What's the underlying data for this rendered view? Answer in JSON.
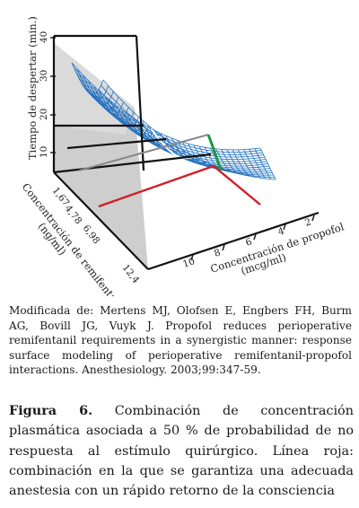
{
  "figure": {
    "z_axis": {
      "label": "Tiempo de despertar (min.)",
      "ticks": [
        "10",
        "20",
        "30",
        "40"
      ]
    },
    "remifentanil_axis": {
      "label": "Concentración de remifentanil",
      "unit": "(ng/ml)",
      "ticks": [
        "1,67",
        "4,78",
        "6,98",
        "12,4"
      ]
    },
    "propofol_axis": {
      "label": "Concentración de propofol",
      "unit": "(mcg/ml)",
      "ticks": [
        "2",
        "4",
        "6",
        "8",
        "10"
      ]
    },
    "colors": {
      "surface_mesh": "#1f6fc0",
      "optimal_line": "#d0202a",
      "response_curve": "#1a9a3a",
      "iso_curve": "#ffffff",
      "shadow_plane": "#c8c8c8",
      "axes": "#111111"
    }
  },
  "credit": {
    "text": "Modificada de: Mertens MJ, Olofsen E, Engbers FH, Burm AG, Bovill JG, Vuyk J. Propofol reduces perioperative remifentanil requirements in a synergistic manner: response surface modeling of perioperative remifentanil-propofol interactions. Anesthesiology. 2003;99:347-59."
  },
  "caption": {
    "label": "Figura 6.",
    "text": " Combinación de concentración plasmática asociada a 50 % de probabilidad de no respuesta al estímulo quirúrgico. Línea roja: combinación en la que se garantiza una adecuada anestesia con un rápido retorno de la consciencia"
  }
}
